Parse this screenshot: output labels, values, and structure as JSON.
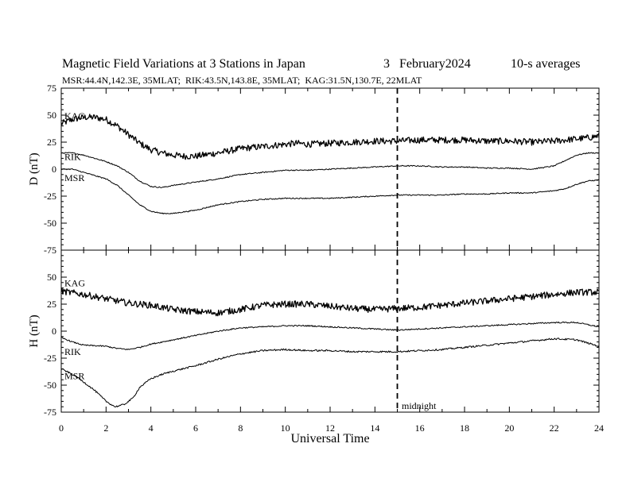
{
  "header": {
    "title": "Magnetic Field Variations at 3 Stations in Japan",
    "date_day": "3",
    "date_month_year": "February2024",
    "averaging": "10-s averages",
    "station_info": "MSR:44.4N,142.3E, 35MLAT;  RIK:43.5N,143.8E, 35MLAT;  KAG:31.5N,130.7E, 22MLAT"
  },
  "chart_data": [
    {
      "type": "line",
      "panel": "D",
      "ylabel": "D (nT)",
      "ylim": [
        -75,
        75
      ],
      "yticks": [
        75,
        50,
        25,
        0,
        -25,
        -50,
        -75
      ],
      "xlim": [
        0,
        24
      ],
      "series": [
        {
          "name": "KAG",
          "noise": 3.0,
          "x": [
            0,
            0.5,
            1,
            1.5,
            2,
            2.5,
            3,
            3.5,
            4,
            4.5,
            5,
            5.5,
            6,
            7,
            8,
            9,
            10,
            10.5,
            11,
            12,
            13,
            14,
            15,
            16,
            17,
            18,
            19,
            20,
            21,
            22,
            22.5,
            23,
            23.5,
            24
          ],
          "values": [
            42,
            46,
            48,
            48,
            46,
            40,
            32,
            24,
            18,
            15,
            13,
            12,
            12,
            15,
            19,
            21,
            23,
            24,
            23,
            24,
            25,
            26,
            26,
            27,
            27,
            27,
            26,
            26,
            25,
            26,
            27,
            28,
            29,
            31
          ]
        },
        {
          "name": "RIK",
          "noise": 0.5,
          "x": [
            0,
            0.5,
            1,
            1.5,
            2,
            2.5,
            3,
            3.5,
            4,
            4.5,
            5,
            6,
            7,
            8,
            9,
            10,
            11,
            12,
            13,
            14,
            15,
            16,
            17,
            18,
            19,
            20,
            21,
            22,
            22.5,
            23,
            23.5,
            24
          ],
          "values": [
            15,
            15,
            13,
            10,
            7,
            3,
            -3,
            -11,
            -16,
            -17,
            -15,
            -12,
            -9,
            -5,
            -3,
            -1,
            -1,
            0,
            1,
            2,
            3,
            3,
            2,
            2,
            1,
            1,
            0,
            3,
            8,
            13,
            15,
            15
          ]
        },
        {
          "name": "MSR",
          "noise": 0.5,
          "x": [
            0,
            0.5,
            1,
            1.5,
            2,
            2.5,
            3,
            3.5,
            4,
            4.5,
            5,
            6,
            7,
            8,
            9,
            10,
            11,
            12,
            13,
            14,
            15,
            16,
            17,
            18,
            19,
            20,
            21,
            22,
            22.5,
            23,
            23.5,
            24
          ],
          "values": [
            0,
            0,
            -3,
            -6,
            -9,
            -15,
            -24,
            -33,
            -39,
            -41,
            -41,
            -38,
            -33,
            -30,
            -28,
            -27,
            -27,
            -27,
            -26,
            -25,
            -24,
            -24,
            -24,
            -23,
            -23,
            -22,
            -22,
            -20,
            -18,
            -14,
            -11,
            -10
          ]
        }
      ]
    },
    {
      "type": "line",
      "panel": "H",
      "ylabel": "H (nT)",
      "xlabel": "Universal Time",
      "ylim": [
        -75,
        75
      ],
      "yticks": [
        50,
        25,
        0,
        -25,
        -50,
        -75
      ],
      "xlim": [
        0,
        24
      ],
      "xticks": [
        0,
        2,
        4,
        6,
        8,
        10,
        12,
        14,
        16,
        18,
        20,
        22,
        24
      ],
      "series": [
        {
          "name": "KAG",
          "noise": 3.0,
          "x": [
            0,
            1,
            2,
            3,
            4,
            5,
            6,
            7,
            8,
            9,
            10,
            11,
            12,
            13,
            14,
            15,
            16,
            17,
            18,
            19,
            20,
            21,
            22,
            23,
            24
          ],
          "values": [
            37,
            34,
            30,
            26,
            24,
            20,
            18,
            17,
            20,
            24,
            25,
            25,
            23,
            21,
            20,
            21,
            22,
            24,
            26,
            28,
            30,
            32,
            34,
            36,
            36
          ]
        },
        {
          "name": "RIK",
          "noise": 0.6,
          "x": [
            0,
            0.5,
            1,
            2,
            2.5,
            3,
            3.5,
            4,
            5,
            6,
            7,
            8,
            9,
            10,
            11,
            12,
            13,
            14,
            15,
            16,
            17,
            18,
            19,
            20,
            21,
            22,
            23,
            24
          ],
          "values": [
            -6,
            -10,
            -13,
            -14,
            -16,
            -17,
            -15,
            -12,
            -8,
            -4,
            0,
            3,
            4,
            5,
            5,
            4,
            3,
            2,
            1,
            2,
            3,
            4,
            5,
            6,
            7,
            8,
            8,
            4
          ]
        },
        {
          "name": "MSR",
          "noise": 0.8,
          "x": [
            0,
            0.5,
            1,
            1.5,
            2,
            2.4,
            2.8,
            3.2,
            3.5,
            4,
            4.5,
            5,
            6,
            7,
            8,
            9,
            10,
            11,
            12,
            13,
            14,
            15,
            16,
            17,
            18,
            19,
            20,
            21,
            22,
            23,
            24
          ],
          "values": [
            -35,
            -40,
            -47,
            -55,
            -65,
            -70,
            -68,
            -62,
            -52,
            -44,
            -40,
            -37,
            -32,
            -26,
            -21,
            -18,
            -17,
            -18,
            -18,
            -19,
            -19,
            -19,
            -18,
            -17,
            -15,
            -13,
            -11,
            -9,
            -7,
            -8,
            -14
          ]
        }
      ]
    }
  ],
  "annotations": {
    "midnight_label": "midnight",
    "midnight_ut": 15
  },
  "colors": {
    "line": "#000000",
    "background": "#ffffff"
  }
}
